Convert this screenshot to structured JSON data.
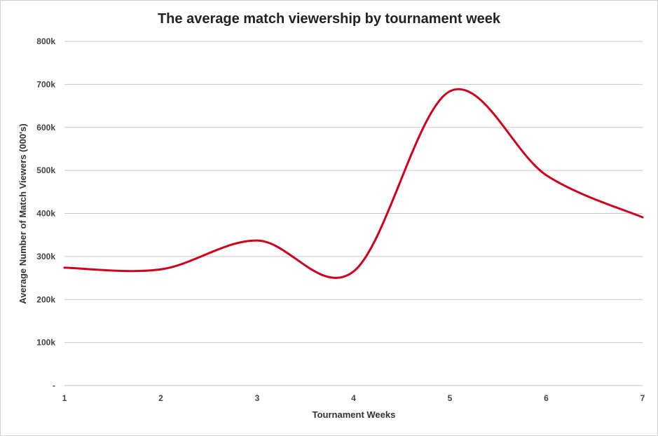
{
  "chart_data": {
    "type": "line",
    "smooth": true,
    "title": "The average match viewership by tournament week",
    "xlabel": "Tournament Weeks",
    "ylabel": "Average Number of Match Viewers (000's)",
    "x": [
      1,
      2,
      3,
      4,
      5,
      6,
      7
    ],
    "series": [
      {
        "values": [
          274,
          270,
          337,
          265,
          684,
          489,
          391
        ],
        "color": "#d0021b"
      }
    ],
    "xticks": [
      "1",
      "2",
      "3",
      "4",
      "5",
      "6",
      "7"
    ],
    "yticks": [
      "-",
      "100k",
      "200k",
      "300k",
      "400k",
      "500k",
      "600k",
      "700k",
      "800k"
    ],
    "ylim": [
      0,
      800
    ],
    "grid": true,
    "legend": "none"
  }
}
